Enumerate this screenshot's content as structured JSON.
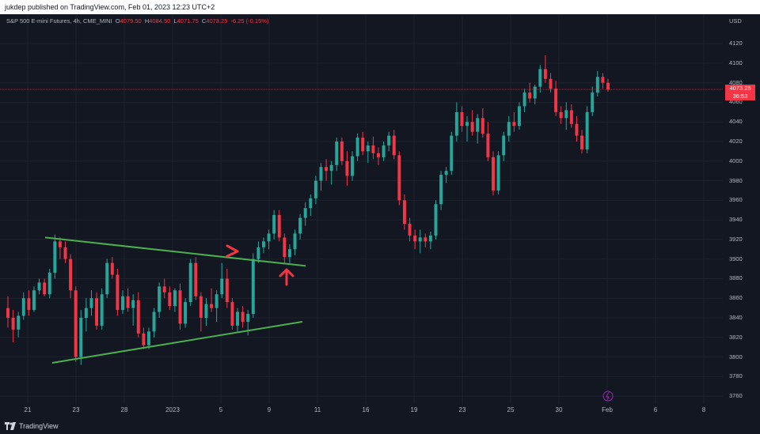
{
  "header": {
    "published_text": "jukdep published on TradingView.com, Feb 01, 2023 12:23 UTC+2"
  },
  "legend": {
    "symbol": "S&P 500 E-mini Futures, 4h, CME_MINI",
    "open_label": "O",
    "open": "4079.50",
    "high_label": "H",
    "high": "4084.50",
    "low_label": "L",
    "low": "4071.75",
    "close_label": "C",
    "close": "4073.25",
    "change": "-6.25 (-0.15%)"
  },
  "price_scale": {
    "currency": "USD",
    "last_price": "4073.25",
    "countdown": "36:53"
  },
  "footer": {
    "brand": "TradingView"
  },
  "colors": {
    "background": "#131722",
    "up": "#26a69a",
    "down": "#f23645",
    "trendline": "#4caf50",
    "arrow": "#f23645",
    "grid": "#1e222d"
  },
  "chart_data": {
    "type": "candlestick",
    "symbol": "S&P 500 E-mini Futures",
    "interval": "4h",
    "y_axis": {
      "ticks": [
        3760,
        3780,
        3800,
        3820,
        3840,
        3860,
        3880,
        3900,
        3920,
        3940,
        3960,
        3980,
        4000,
        4020,
        4040,
        4060,
        4080,
        4100,
        4120
      ],
      "range": [
        3752,
        4150
      ]
    },
    "x_axis": {
      "tick_labels": [
        "21",
        "23",
        "28",
        "2023",
        "5",
        "9",
        "11",
        "16",
        "19",
        "23",
        "25",
        "30",
        "Feb",
        "6",
        "8"
      ]
    },
    "last_price": 4073.25,
    "candles_ohlc": [
      [
        3850,
        3862,
        3830,
        3840
      ],
      [
        3840,
        3848,
        3815,
        3828
      ],
      [
        3828,
        3846,
        3820,
        3842
      ],
      [
        3842,
        3866,
        3838,
        3860
      ],
      [
        3860,
        3868,
        3842,
        3848
      ],
      [
        3848,
        3872,
        3846,
        3868
      ],
      [
        3868,
        3880,
        3864,
        3876
      ],
      [
        3876,
        3880,
        3862,
        3864
      ],
      [
        3864,
        3890,
        3860,
        3886
      ],
      [
        3886,
        3925,
        3880,
        3918
      ],
      [
        3918,
        3922,
        3900,
        3912
      ],
      [
        3912,
        3918,
        3896,
        3900
      ],
      [
        3900,
        3905,
        3860,
        3868
      ],
      [
        3868,
        3872,
        3795,
        3800
      ],
      [
        3800,
        3848,
        3792,
        3840
      ],
      [
        3840,
        3860,
        3826,
        3850
      ],
      [
        3850,
        3868,
        3842,
        3860
      ],
      [
        3860,
        3866,
        3828,
        3832
      ],
      [
        3832,
        3870,
        3828,
        3864
      ],
      [
        3864,
        3900,
        3860,
        3896
      ],
      [
        3896,
        3902,
        3880,
        3884
      ],
      [
        3884,
        3890,
        3842,
        3848
      ],
      [
        3848,
        3868,
        3844,
        3862
      ],
      [
        3862,
        3870,
        3846,
        3850
      ],
      [
        3850,
        3864,
        3832,
        3858
      ],
      [
        3858,
        3866,
        3820,
        3824
      ],
      [
        3824,
        3830,
        3808,
        3812
      ],
      [
        3812,
        3830,
        3808,
        3826
      ],
      [
        3826,
        3850,
        3820,
        3846
      ],
      [
        3846,
        3876,
        3840,
        3872
      ],
      [
        3872,
        3880,
        3860,
        3866
      ],
      [
        3866,
        3872,
        3848,
        3852
      ],
      [
        3852,
        3870,
        3846,
        3868
      ],
      [
        3868,
        3875,
        3828,
        3834
      ],
      [
        3834,
        3860,
        3830,
        3856
      ],
      [
        3856,
        3900,
        3852,
        3896
      ],
      [
        3896,
        3902,
        3858,
        3862
      ],
      [
        3862,
        3866,
        3826,
        3840
      ],
      [
        3840,
        3860,
        3832,
        3854
      ],
      [
        3854,
        3870,
        3846,
        3850
      ],
      [
        3850,
        3868,
        3836,
        3864
      ],
      [
        3864,
        3896,
        3860,
        3880
      ],
      [
        3880,
        3890,
        3850,
        3856
      ],
      [
        3856,
        3860,
        3828,
        3832
      ],
      [
        3832,
        3850,
        3826,
        3846
      ],
      [
        3846,
        3852,
        3830,
        3836
      ],
      [
        3836,
        3848,
        3822,
        3844
      ],
      [
        3844,
        3906,
        3840,
        3900
      ],
      [
        3900,
        3918,
        3896,
        3912
      ],
      [
        3912,
        3922,
        3906,
        3918
      ],
      [
        3918,
        3930,
        3910,
        3926
      ],
      [
        3926,
        3950,
        3920,
        3945
      ],
      [
        3945,
        3950,
        3918,
        3922
      ],
      [
        3922,
        3926,
        3896,
        3902
      ],
      [
        3902,
        3915,
        3896,
        3910
      ],
      [
        3910,
        3930,
        3904,
        3926
      ],
      [
        3926,
        3946,
        3920,
        3942
      ],
      [
        3942,
        3958,
        3934,
        3952
      ],
      [
        3952,
        3966,
        3944,
        3962
      ],
      [
        3962,
        3985,
        3956,
        3980
      ],
      [
        3980,
        3998,
        3970,
        3994
      ],
      [
        3994,
        4002,
        3980,
        3990
      ],
      [
        3990,
        4000,
        3976,
        3996
      ],
      [
        3996,
        4024,
        3990,
        4020
      ],
      [
        4020,
        4024,
        3996,
        4000
      ],
      [
        4000,
        4010,
        3975,
        3985
      ],
      [
        3985,
        4010,
        3980,
        4005
      ],
      [
        4005,
        4028,
        4000,
        4024
      ],
      [
        4024,
        4030,
        4006,
        4010
      ],
      [
        4010,
        4020,
        3998,
        4016
      ],
      [
        4016,
        4025,
        4002,
        4008
      ],
      [
        4008,
        4014,
        3996,
        4004
      ],
      [
        4004,
        4020,
        4000,
        4016
      ],
      [
        4016,
        4030,
        4010,
        4026
      ],
      [
        4026,
        4032,
        4002,
        4006
      ],
      [
        4006,
        4010,
        3955,
        3960
      ],
      [
        3960,
        3966,
        3930,
        3936
      ],
      [
        3936,
        3942,
        3918,
        3924
      ],
      [
        3924,
        3930,
        3910,
        3918
      ],
      [
        3918,
        3930,
        3906,
        3922
      ],
      [
        3922,
        3926,
        3912,
        3918
      ],
      [
        3918,
        3928,
        3910,
        3924
      ],
      [
        3924,
        3960,
        3920,
        3956
      ],
      [
        3956,
        3990,
        3950,
        3986
      ],
      [
        3986,
        3994,
        3978,
        3990
      ],
      [
        3990,
        4030,
        3986,
        4026
      ],
      [
        4026,
        4060,
        4020,
        4050
      ],
      [
        4050,
        4056,
        4030,
        4036
      ],
      [
        4036,
        4046,
        4020,
        4040
      ],
      [
        4040,
        4052,
        4026,
        4030
      ],
      [
        4030,
        4048,
        4018,
        4044
      ],
      [
        4044,
        4054,
        4024,
        4028
      ],
      [
        4028,
        4040,
        4000,
        4004
      ],
      [
        4004,
        4010,
        3965,
        3970
      ],
      [
        3970,
        4010,
        3966,
        4006
      ],
      [
        4006,
        4030,
        4000,
        4026
      ],
      [
        4026,
        4046,
        4020,
        4040
      ],
      [
        4040,
        4050,
        4030,
        4036
      ],
      [
        4036,
        4060,
        4032,
        4056
      ],
      [
        4056,
        4074,
        4050,
        4070
      ],
      [
        4070,
        4080,
        4060,
        4064
      ],
      [
        4064,
        4078,
        4058,
        4076
      ],
      [
        4076,
        4098,
        4070,
        4094
      ],
      [
        4094,
        4108,
        4080,
        4084
      ],
      [
        4084,
        4090,
        4070,
        4074
      ],
      [
        4074,
        4082,
        4046,
        4050
      ],
      [
        4050,
        4056,
        4038,
        4044
      ],
      [
        4044,
        4060,
        4032,
        4052
      ],
      [
        4052,
        4058,
        4034,
        4038
      ],
      [
        4038,
        4046,
        4020,
        4026
      ],
      [
        4026,
        4032,
        4008,
        4012
      ],
      [
        4012,
        4056,
        4008,
        4050
      ],
      [
        4050,
        4076,
        4046,
        4070
      ],
      [
        4070,
        4092,
        4066,
        4086
      ],
      [
        4086,
        4090,
        4074,
        4080
      ],
      [
        4080,
        4084,
        4071,
        4073
      ]
    ]
  },
  "annotations": [
    {
      "type": "trendline",
      "name": "upper-trendline",
      "from": [
        3922,
        "start"
      ],
      "to": [
        3893,
        "end"
      ]
    },
    {
      "type": "trendline",
      "name": "lower-trendline",
      "from": [
        3794,
        "start"
      ],
      "to": [
        3836,
        "end"
      ]
    }
  ]
}
